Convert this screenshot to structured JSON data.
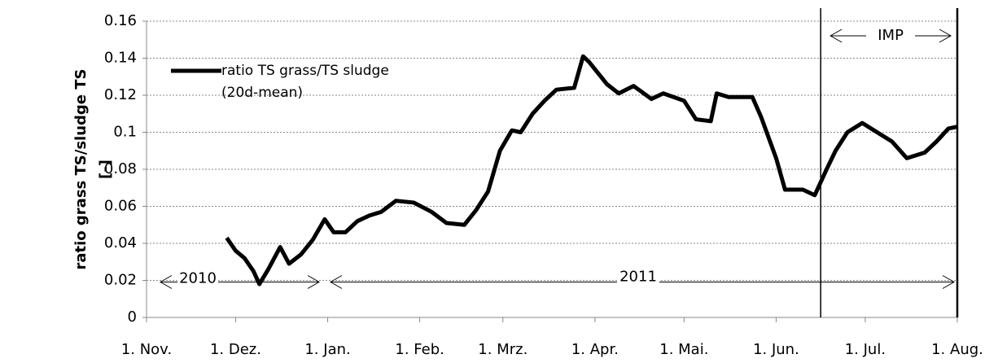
{
  "chart_data": {
    "type": "line",
    "y_label": [
      "ratio grass TS/sludge TS",
      "[-]"
    ],
    "x": [
      27,
      30,
      33,
      36,
      38,
      41,
      45,
      48,
      52,
      56,
      60,
      63,
      67,
      71,
      75,
      79,
      84,
      90,
      96,
      101,
      107,
      111,
      115,
      119,
      123,
      126,
      130,
      134,
      138,
      144,
      147,
      149,
      155,
      159,
      164,
      170,
      174,
      181,
      185,
      190,
      192,
      196,
      204,
      207,
      212,
      215,
      221,
      225,
      229,
      232,
      236,
      241,
      245,
      251,
      256,
      262,
      266,
      270,
      273
    ],
    "series": [
      {
        "name": "ratio TS grass/TS sludge (20d-mean)",
        "color": "#000000",
        "values": [
          0.043,
          0.036,
          0.032,
          0.025,
          0.018,
          0.026,
          0.038,
          0.029,
          0.034,
          0.042,
          0.053,
          0.046,
          0.046,
          0.052,
          0.055,
          0.057,
          0.063,
          0.062,
          0.057,
          0.051,
          0.05,
          0.058,
          0.068,
          0.09,
          0.101,
          0.1,
          0.11,
          0.117,
          0.123,
          0.124,
          0.141,
          0.138,
          0.126,
          0.121,
          0.125,
          0.118,
          0.121,
          0.117,
          0.107,
          0.106,
          0.121,
          0.119,
          0.119,
          0.108,
          0.086,
          0.069,
          0.069,
          0.066,
          0.08,
          0.09,
          0.1,
          0.105,
          0.101,
          0.095,
          0.086,
          0.089,
          0.095,
          0.102,
          0.103
        ]
      }
    ],
    "xlim": [
      0,
      273
    ],
    "xticks": [
      {
        "value": 0,
        "label": "1. Nov."
      },
      {
        "value": 30,
        "label": "1. Dez."
      },
      {
        "value": 61,
        "label": "1. Jan."
      },
      {
        "value": 92,
        "label": "1. Feb."
      },
      {
        "value": 120,
        "label": "1. Mrz."
      },
      {
        "value": 151,
        "label": "1. Apr."
      },
      {
        "value": 181,
        "label": "1. Mai."
      },
      {
        "value": 212,
        "label": "1. Jun."
      },
      {
        "value": 242,
        "label": "1. Jul."
      },
      {
        "value": 273,
        "label": "1. Aug."
      }
    ],
    "ylim": [
      0,
      0.16
    ],
    "yticks": [
      0,
      0.02,
      0.04,
      0.06,
      0.08,
      0.1,
      0.12,
      0.14,
      0.16
    ],
    "grid": true,
    "vlines": [
      227,
      273
    ],
    "annotations": [
      "2010",
      "2011",
      "IMP"
    ]
  }
}
